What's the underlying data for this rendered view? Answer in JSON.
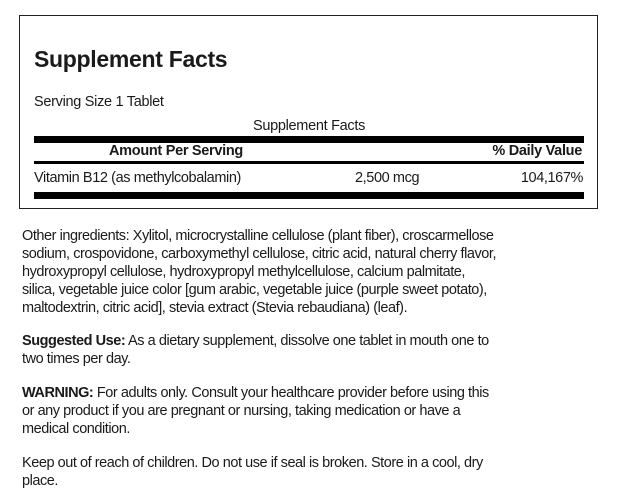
{
  "facts": {
    "title": "Supplement Facts",
    "serving_size": "Serving Size 1 Tablet",
    "table_caption": "Supplement Facts",
    "headers": {
      "amount": "Amount Per Serving",
      "dv": "% Daily Value"
    },
    "rows": [
      {
        "name": "Vitamin B12 (as methylcobalamin)",
        "amount": "2,500 mcg",
        "dv": "104,167%"
      }
    ]
  },
  "other_ingredients": {
    "lines": [
      "Other ingredients: Xylitol, microcrystalline cellulose (plant fiber), croscarmellose",
      "sodium, crospovidone, carboxymethyl cellulose, citric acid, natural cherry flavor,",
      "hydroxypropyl cellulose, hydroxypropyl methylcellulose, calcium palmitate,",
      "silica, vegetable juice color [gum arabic, vegetable juice (purple sweet potato),",
      "maltodextrin, citric acid], stevia extract (Stevia rebaudiana) (leaf)."
    ]
  },
  "suggested_use": {
    "label": "Suggested Use:",
    "lines": [
      " As a dietary supplement, dissolve one tablet in mouth one to",
      "two times per day."
    ]
  },
  "warning": {
    "label": "WARNING:",
    "lines": [
      " For adults only. Consult your healthcare provider before using this",
      "or any product if you are pregnant or nursing, taking medication or have a",
      "medical condition."
    ]
  },
  "storage": {
    "lines": [
      "Keep out of reach of children. Do not use if seal is broken. Store in a cool, dry",
      "place."
    ]
  }
}
